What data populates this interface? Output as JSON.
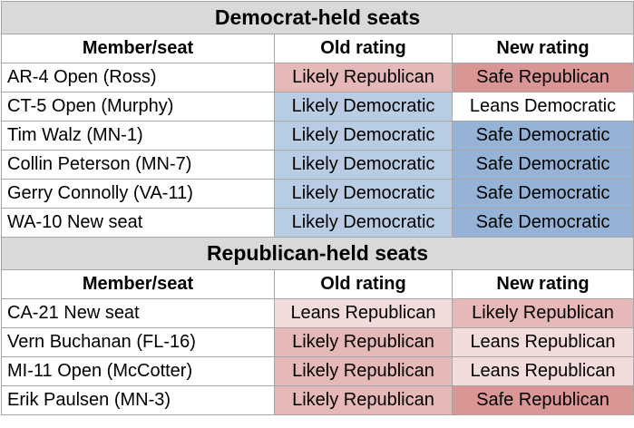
{
  "colors": {
    "Likely Republican": "#e6b8b7",
    "Safe Republican": "#da9694",
    "Leans Republican": "#f2dcdb",
    "Likely Democratic": "#b8cce4",
    "Safe Democratic": "#95b3d7",
    "Leans Democratic": "#ffffff"
  },
  "democrat": {
    "title": "Democrat-held seats",
    "headers": [
      "Member/seat",
      "Old rating",
      "New rating"
    ],
    "rows": [
      {
        "member": "AR-4 Open (Ross)",
        "old": "Likely Republican",
        "new": "Safe Republican"
      },
      {
        "member": "CT-5 Open (Murphy)",
        "old": "Likely Democratic",
        "new": "Leans Democratic"
      },
      {
        "member": "Tim Walz (MN-1)",
        "old": "Likely Democratic",
        "new": "Safe Democratic"
      },
      {
        "member": "Collin Peterson (MN-7)",
        "old": "Likely Democratic",
        "new": "Safe Democratic"
      },
      {
        "member": "Gerry Connolly (VA-11)",
        "old": "Likely Democratic",
        "new": "Safe Democratic"
      },
      {
        "member": "WA-10 New seat",
        "old": "Likely Democratic",
        "new": "Safe Democratic"
      }
    ]
  },
  "republican": {
    "title": "Republican-held seats",
    "headers": [
      "Member/seat",
      "Old rating",
      "New rating"
    ],
    "rows": [
      {
        "member": "CA-21 New seat",
        "old": "Leans Republican",
        "new": "Likely Republican"
      },
      {
        "member": "Vern Buchanan (FL-16)",
        "old": "Likely Republican",
        "new": "Leans Republican"
      },
      {
        "member": "MI-11 Open (McCotter)",
        "old": "Likely Republican",
        "new": "Leans Republican"
      },
      {
        "member": "Erik Paulsen (MN-3)",
        "old": "Likely Republican",
        "new": "Safe Republican"
      }
    ]
  }
}
